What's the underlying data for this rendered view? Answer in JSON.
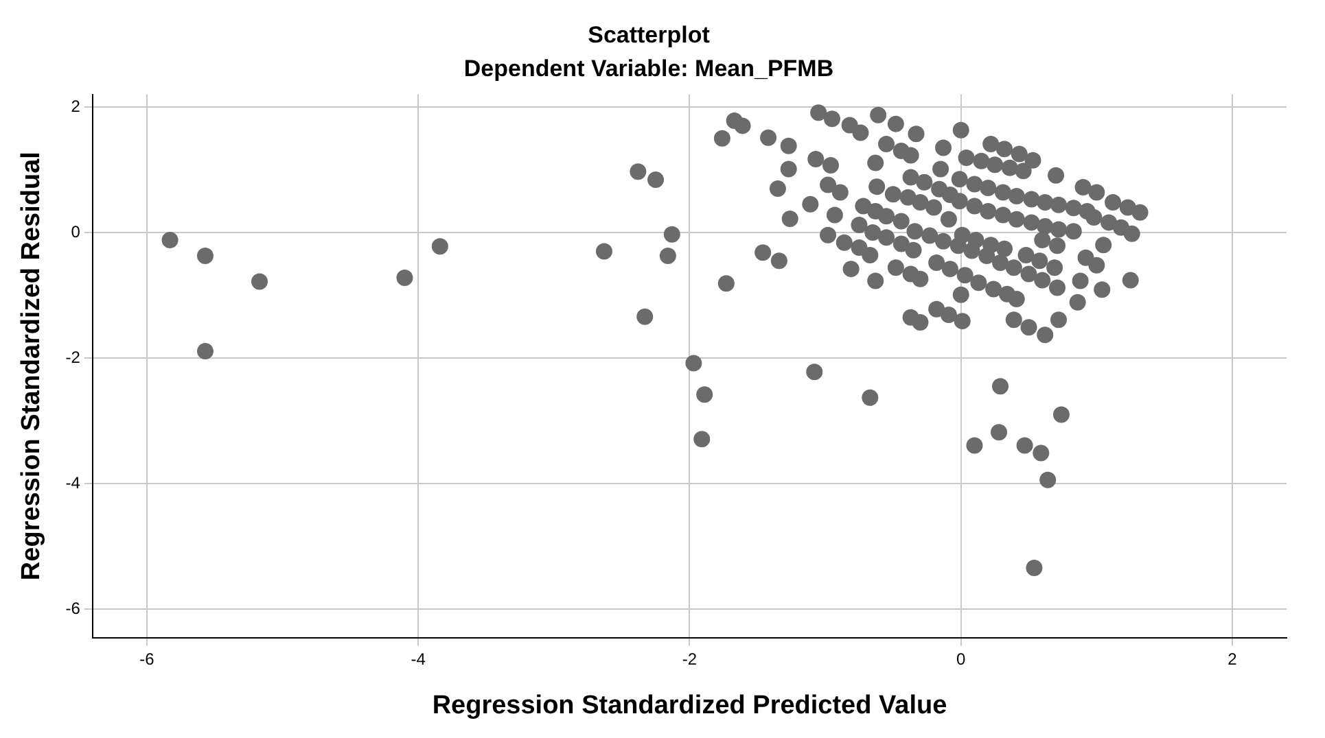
{
  "chart_data": {
    "type": "scatter",
    "title": "Scatterplot",
    "subtitle": "Dependent Variable: Mean_PFMB",
    "xlabel": "Regression Standardized Predicted Value",
    "ylabel": "Regression Standardized Residual",
    "xlim": [
      -6.4,
      2.4
    ],
    "ylim": [
      -6.45,
      2.2
    ],
    "xticks": [
      -6,
      -4,
      -2,
      0,
      2
    ],
    "yticks": [
      -6,
      -4,
      -2,
      0,
      2
    ],
    "grid": true,
    "marker": "circle",
    "series": [
      {
        "color": "#6b6b6b",
        "x": [
          -5.83,
          -5.57,
          -5.17,
          -5.57,
          -4.1,
          -3.84,
          -2.63,
          -2.38,
          -2.25,
          -2.13,
          -2.16,
          -2.33,
          -1.97,
          -1.89,
          -1.91,
          -1.08,
          -0.67,
          0.29,
          0.74,
          0.28,
          0.1,
          0.47,
          0.59,
          0.64,
          0.54,
          -1.76,
          -1.67,
          -1.61,
          -1.42,
          -1.27,
          -1.27,
          -1.35,
          -1.26,
          -1.11,
          -1.46,
          -1.34,
          -1.73,
          -1.05,
          -0.95,
          -1.07,
          -0.96,
          -0.98,
          -0.89,
          -0.93,
          -0.98,
          -0.86,
          -0.75,
          -0.67,
          -0.81,
          -0.63,
          -0.82,
          -0.74,
          -0.61,
          -0.48,
          -0.33,
          0.0,
          -0.13,
          -0.15,
          -0.63,
          -0.55,
          -0.44,
          -0.37,
          -0.62,
          -0.5,
          -0.72,
          -0.63,
          -0.55,
          -0.44,
          -0.75,
          -0.65,
          -0.55,
          -0.44,
          -0.35,
          -0.48,
          -0.37,
          -0.3,
          -0.37,
          -0.3,
          -0.18,
          -0.09,
          0.01,
          0.0,
          -0.37,
          -0.27,
          -0.16,
          -0.08,
          -0.39,
          -0.3,
          -0.2,
          -0.09,
          -0.34,
          -0.23,
          -0.13,
          -0.02,
          0.08,
          0.19,
          0.29,
          0.39,
          0.5,
          0.6,
          0.71,
          -0.18,
          -0.08,
          0.03,
          0.13,
          0.24,
          0.34,
          0.01,
          0.11,
          0.22,
          0.32,
          -0.01,
          0.1,
          0.2,
          0.31,
          0.41,
          0.52,
          0.62,
          0.72,
          0.83,
          -0.01,
          0.1,
          0.2,
          0.31,
          0.41,
          0.52,
          0.62,
          0.72,
          0.83,
          0.93,
          0.04,
          0.15,
          0.25,
          0.36,
          0.46,
          0.22,
          0.32,
          0.43,
          0.53,
          0.7,
          0.9,
          1.0,
          1.12,
          1.23,
          1.32,
          0.98,
          1.09,
          1.18,
          1.26,
          0.6,
          0.71,
          1.05,
          0.48,
          0.58,
          0.69,
          0.92,
          1.0,
          0.88,
          1.04,
          1.25,
          0.41,
          0.86,
          0.72,
          0.39,
          0.5,
          0.62
        ],
        "values": [
          -0.12,
          -0.37,
          -0.78,
          -1.89,
          -0.72,
          -0.22,
          -0.3,
          0.97,
          0.84,
          -0.03,
          -0.37,
          -1.34,
          -2.08,
          -2.58,
          -3.29,
          -2.22,
          -2.63,
          -2.45,
          -2.9,
          -3.18,
          -3.39,
          -3.39,
          -3.51,
          -3.94,
          -5.34,
          1.5,
          1.78,
          1.7,
          1.51,
          1.38,
          1.01,
          0.7,
          0.22,
          0.45,
          -0.32,
          -0.45,
          -0.81,
          1.91,
          1.81,
          1.17,
          1.07,
          0.76,
          0.64,
          0.28,
          -0.04,
          -0.16,
          -0.24,
          -0.36,
          -0.58,
          -0.77,
          1.71,
          1.59,
          1.87,
          1.73,
          1.57,
          1.63,
          1.35,
          1.01,
          1.11,
          1.41,
          1.3,
          1.23,
          0.73,
          0.61,
          0.42,
          0.34,
          0.26,
          0.18,
          0.12,
          0.0,
          -0.08,
          -0.18,
          -0.28,
          -0.56,
          -0.66,
          -0.74,
          -1.35,
          -1.43,
          -1.22,
          -1.31,
          -1.41,
          -0.99,
          0.88,
          0.8,
          0.69,
          0.6,
          0.56,
          0.48,
          0.4,
          0.21,
          0.02,
          -0.05,
          -0.14,
          -0.21,
          -0.29,
          -0.37,
          -0.48,
          -0.56,
          -0.66,
          -0.76,
          -0.88,
          -0.48,
          -0.58,
          -0.68,
          -0.8,
          -0.9,
          -0.98,
          -0.04,
          -0.12,
          -0.2,
          -0.26,
          0.5,
          0.42,
          0.34,
          0.28,
          0.21,
          0.16,
          0.1,
          0.05,
          0.02,
          0.85,
          0.77,
          0.71,
          0.64,
          0.58,
          0.53,
          0.48,
          0.44,
          0.39,
          0.34,
          1.19,
          1.14,
          1.08,
          1.03,
          0.98,
          1.41,
          1.33,
          1.25,
          1.15,
          0.91,
          0.72,
          0.64,
          0.48,
          0.4,
          0.32,
          0.24,
          0.16,
          0.08,
          -0.02,
          -0.12,
          -0.21,
          -0.2,
          -0.36,
          -0.45,
          -0.56,
          -0.4,
          -0.52,
          -0.77,
          -0.91,
          -0.76,
          -1.06,
          -1.11,
          -1.39,
          -1.39,
          -1.51,
          -1.63
        ]
      }
    ]
  }
}
